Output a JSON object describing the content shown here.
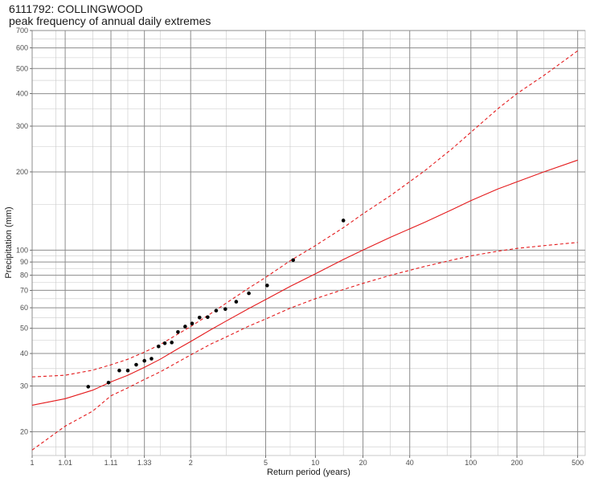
{
  "title": "6111792: COLLINGWOOD",
  "subtitle": "peak frequency of annual daily extremes",
  "chart_data": {
    "type": "scatter",
    "xlabel": "Return period (years)",
    "ylabel": "Precipitation (mm)",
    "x_scale": "gumbel-reduced-variate",
    "y_scale": "log",
    "xlim": [
      1,
      560
    ],
    "ylim": [
      16.2,
      700
    ],
    "grid": true,
    "x_ticks": [
      1,
      1.01,
      1.11,
      1.33,
      2,
      5,
      10,
      20,
      40,
      100,
      200,
      500
    ],
    "x_tick_labels": [
      "1",
      "1.01",
      "1.11",
      "1.33",
      "2",
      "5",
      "10",
      "20",
      "40",
      "100",
      "200",
      "500"
    ],
    "y_ticks": [
      20,
      30,
      40,
      50,
      60,
      70,
      80,
      90,
      100,
      200,
      300,
      400,
      500,
      600,
      700
    ],
    "y_tick_labels": [
      "20",
      "30",
      "40",
      "50",
      "60",
      "70",
      "80",
      "90",
      "100",
      "200",
      "300",
      "400",
      "500",
      "600",
      "700"
    ],
    "colors": {
      "fit": "#e41a1c",
      "points": "#000000",
      "grid": "#8c8c8c"
    },
    "points": [
      {
        "x": 1.04,
        "y": 29.8
      },
      {
        "x": 1.1,
        "y": 30.9
      },
      {
        "x": 1.15,
        "y": 34.4
      },
      {
        "x": 1.2,
        "y": 34.4
      },
      {
        "x": 1.26,
        "y": 36.2
      },
      {
        "x": 1.33,
        "y": 37.5
      },
      {
        "x": 1.4,
        "y": 38.2
      },
      {
        "x": 1.48,
        "y": 42.6
      },
      {
        "x": 1.56,
        "y": 43.8
      },
      {
        "x": 1.66,
        "y": 44.1
      },
      {
        "x": 1.76,
        "y": 48.4
      },
      {
        "x": 1.89,
        "y": 50.8
      },
      {
        "x": 2.03,
        "y": 52.2
      },
      {
        "x": 2.2,
        "y": 55.0
      },
      {
        "x": 2.41,
        "y": 55.2
      },
      {
        "x": 2.66,
        "y": 58.5
      },
      {
        "x": 2.97,
        "y": 59.3
      },
      {
        "x": 3.4,
        "y": 63.3
      },
      {
        "x": 4.0,
        "y": 68.2
      },
      {
        "x": 5.1,
        "y": 73.1
      },
      {
        "x": 7.3,
        "y": 91.5
      },
      {
        "x": 15.0,
        "y": 130.0
      }
    ],
    "series": [
      {
        "style": "solid",
        "x": [
          1,
          1.01,
          1.05,
          1.11,
          1.2,
          1.33,
          1.5,
          1.75,
          2,
          2.5,
          3,
          4,
          5,
          7,
          10,
          15,
          20,
          30,
          50,
          75,
          100,
          150,
          200,
          300,
          500
        ],
        "values": [
          25.3,
          26.8,
          28.9,
          31.1,
          33.0,
          35.4,
          38.0,
          41.6,
          44.5,
          49.4,
          53.3,
          59.6,
          64.5,
          72.5,
          81.0,
          92.0,
          100.0,
          112.0,
          128.0,
          143.0,
          155.0,
          172.0,
          183.0,
          200.0,
          222.0
        ]
      },
      {
        "style": "dashed",
        "x": [
          1,
          1.01,
          1.05,
          1.11,
          1.2,
          1.33,
          1.5,
          1.75,
          2,
          2.5,
          3,
          4,
          5,
          7,
          10,
          15,
          20,
          30,
          50,
          75,
          100,
          150,
          200,
          300,
          500
        ],
        "values": [
          32.5,
          33.0,
          34.5,
          36.2,
          38.0,
          40.5,
          43.3,
          47.4,
          50.8,
          57.0,
          62.5,
          71.5,
          78.5,
          91.0,
          104.0,
          122.0,
          138.0,
          162.0,
          202.0,
          245.0,
          284.0,
          350.0,
          400.0,
          470.0,
          585.0
        ]
      },
      {
        "style": "dashed",
        "x": [
          1,
          1.01,
          1.05,
          1.11,
          1.2,
          1.33,
          1.5,
          1.75,
          2,
          2.5,
          3,
          4,
          5,
          7,
          10,
          15,
          20,
          30,
          50,
          75,
          100,
          150,
          200,
          300,
          500
        ],
        "values": [
          17.0,
          21.0,
          24.0,
          27.5,
          29.5,
          31.8,
          34.0,
          37.0,
          39.5,
          43.5,
          46.3,
          51.0,
          54.3,
          59.8,
          65.0,
          70.5,
          74.5,
          80.0,
          86.5,
          91.5,
          95.0,
          99.0,
          101.5,
          104.0,
          107.0
        ]
      }
    ]
  }
}
